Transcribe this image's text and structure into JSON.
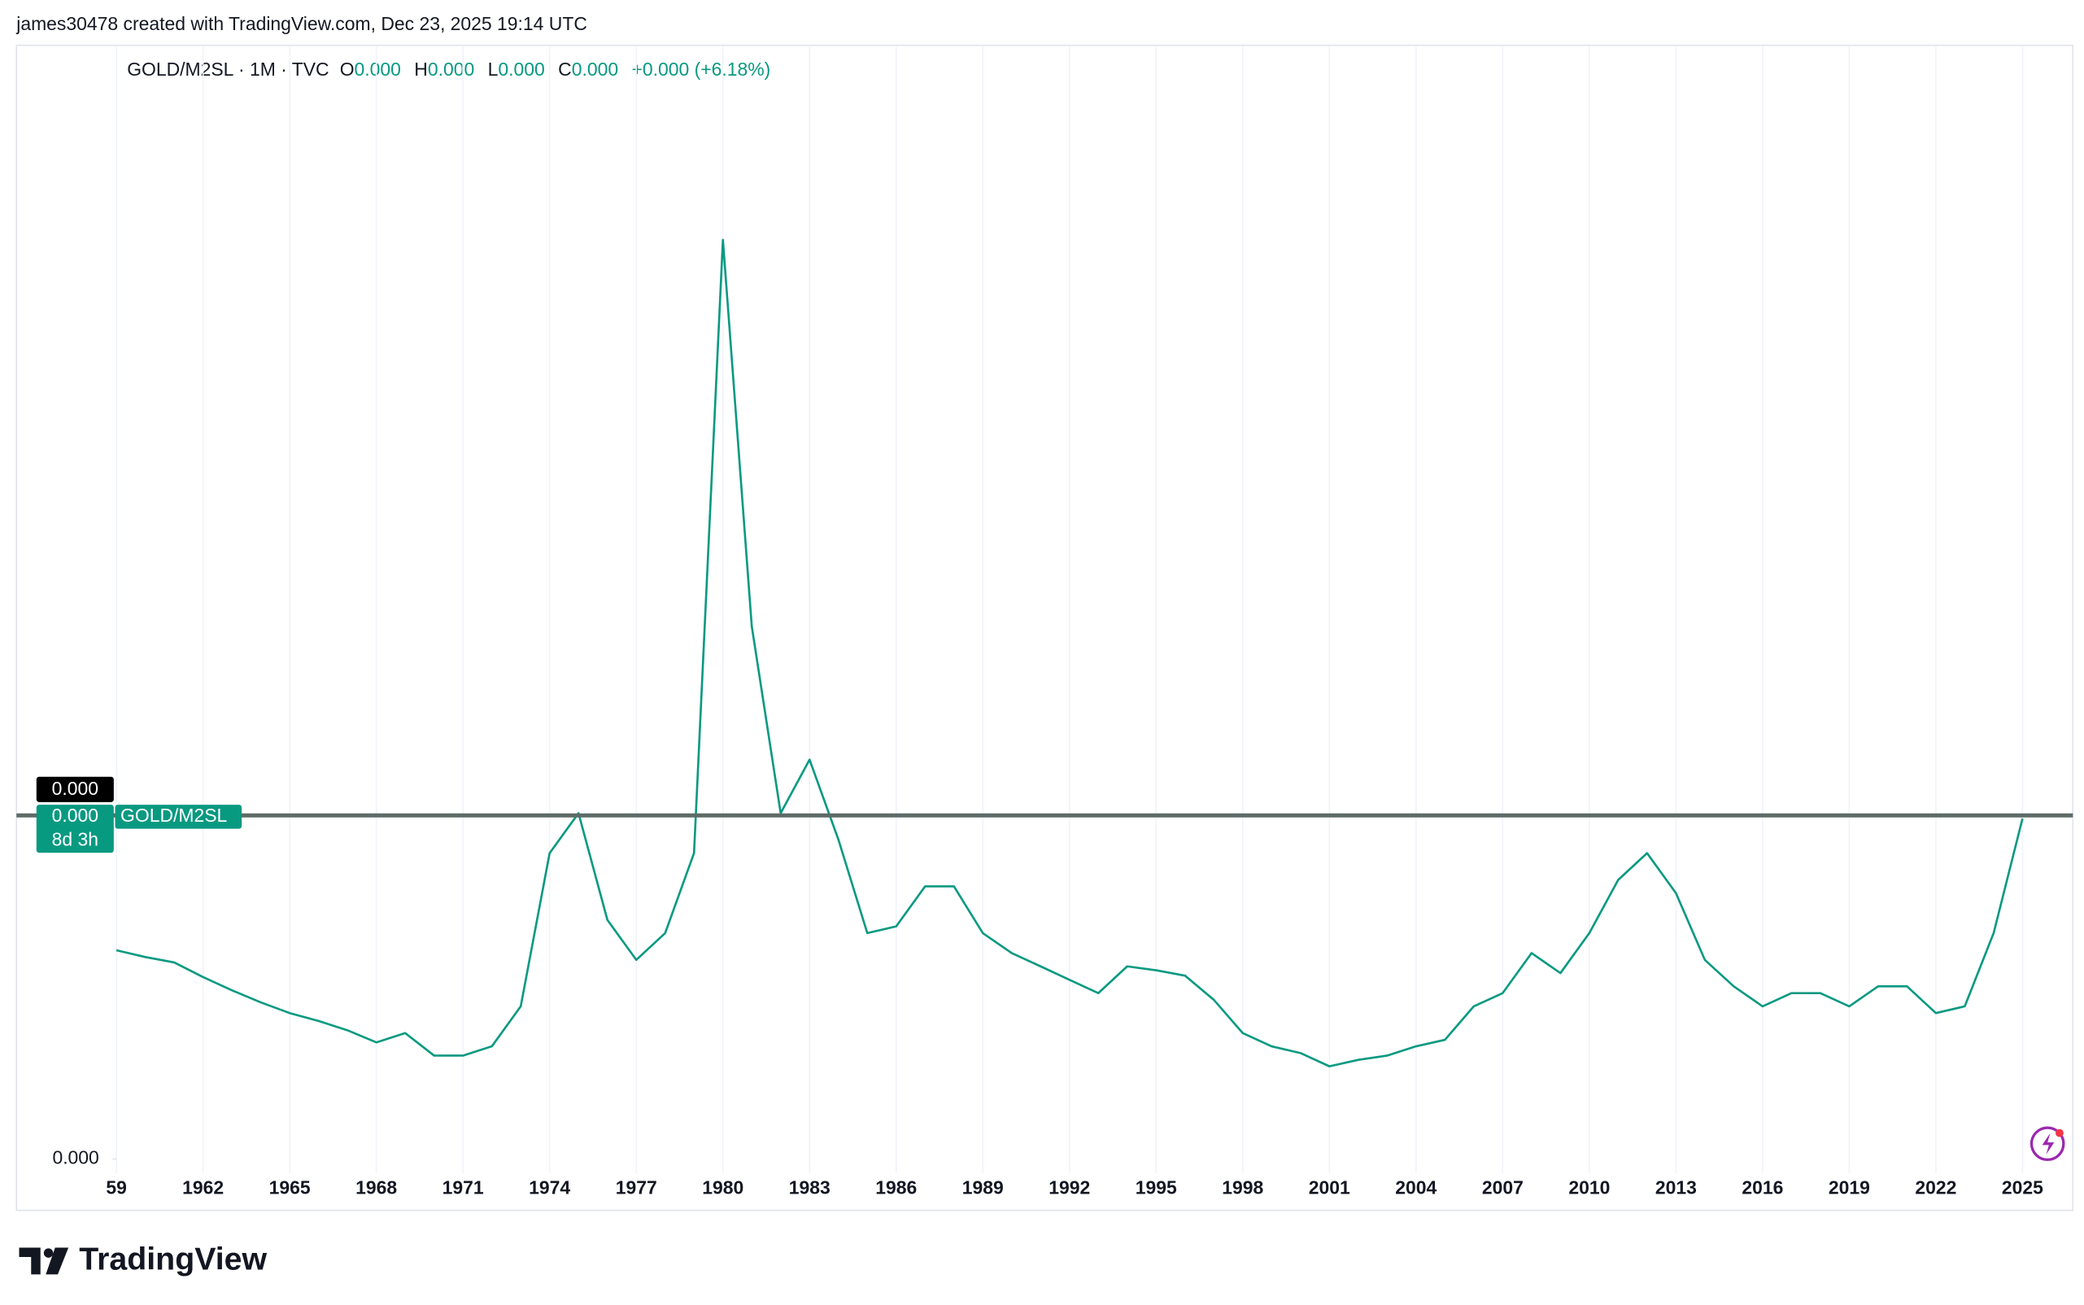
{
  "header": {
    "attribution": "james30478 created with TradingView.com, Dec 23, 2025 19:14 UTC"
  },
  "chart_data": {
    "type": "line",
    "title": "GOLD/M2SL · 1M · TVC",
    "legend_values": [
      {
        "key": "O",
        "value": "0.000"
      },
      {
        "key": "H",
        "value": "0.000"
      },
      {
        "key": "L",
        "value": "0.000"
      },
      {
        "key": "C",
        "value": "0.000"
      }
    ],
    "change": "+0.000 (+6.18%)",
    "x": [
      1959,
      1960,
      1961,
      1962,
      1963,
      1964,
      1965,
      1966,
      1967,
      1968,
      1969,
      1970,
      1971,
      1972,
      1973,
      1974,
      1975,
      1976,
      1977,
      1978,
      1979,
      1980,
      1981,
      1982,
      1983,
      1984,
      1985,
      1986,
      1987,
      1988,
      1989,
      1990,
      1991,
      1992,
      1993,
      1994,
      1995,
      1996,
      1997,
      1998,
      1999,
      2000,
      2001,
      2002,
      2003,
      2004,
      2005,
      2006,
      2007,
      2008,
      2009,
      2010,
      2011,
      2012,
      2013,
      2014,
      2015,
      2016,
      2017,
      2018,
      2019,
      2020,
      2021,
      2022,
      2023,
      2024,
      2025
    ],
    "series": [
      {
        "name": "GOLD/M2SL",
        "color": "#089981",
        "values": [
          7.91e-05,
          7.67e-05,
          7.48e-05,
          6.96e-05,
          6.49e-05,
          6.06e-05,
          5.68e-05,
          5.4e-05,
          5.07e-05,
          4.64e-05,
          4.97e-05,
          4.17e-05,
          4.17e-05,
          4.5e-05,
          5.92e-05,
          0.0001136,
          0.0001278,
          8.99e-05,
          7.57e-05,
          8.52e-05,
          0.0001136,
          0.0003314,
          0.0001941,
          0.0001278,
          0.0001468,
          0.0001184,
          8.52e-05,
          8.76e-05,
          0.0001018,
          0.0001018,
          8.52e-05,
          7.81e-05,
          7.34e-05,
          6.86e-05,
          6.39e-05,
          7.34e-05,
          7.2e-05,
          7.01e-05,
          6.15e-05,
          4.97e-05,
          4.5e-05,
          4.26e-05,
          3.79e-05,
          4.02e-05,
          4.17e-05,
          4.5e-05,
          4.73e-05,
          5.92e-05,
          6.39e-05,
          7.81e-05,
          7.1e-05,
          8.52e-05,
          0.0001041,
          0.0001136,
          9.94e-05,
          7.57e-05,
          6.63e-05,
          5.92e-05,
          6.39e-05,
          6.39e-05,
          5.92e-05,
          6.63e-05,
          6.63e-05,
          5.68e-05,
          5.92e-05,
          8.52e-05,
          0.0001259
        ]
      }
    ],
    "xlim": [
      1959,
      2026.6
    ],
    "xticks": [
      {
        "value": 1959,
        "label": "59"
      },
      1962,
      1965,
      1968,
      1971,
      1974,
      1977,
      1980,
      1983,
      1986,
      1989,
      1992,
      1995,
      1998,
      2001,
      2004,
      2007,
      2010,
      2013,
      2016,
      2019,
      2022,
      2025
    ],
    "ylim": [
      0,
      0.0004
    ],
    "yticks": [
      {
        "value": 5e-06,
        "label": "0.000"
      }
    ],
    "grid": true,
    "price_line": {
      "value": 0.000127,
      "label": "0.000",
      "countdown": "8d 3h"
    },
    "crosshair_label": "0.000"
  },
  "footer": {
    "brand": "TradingView"
  }
}
